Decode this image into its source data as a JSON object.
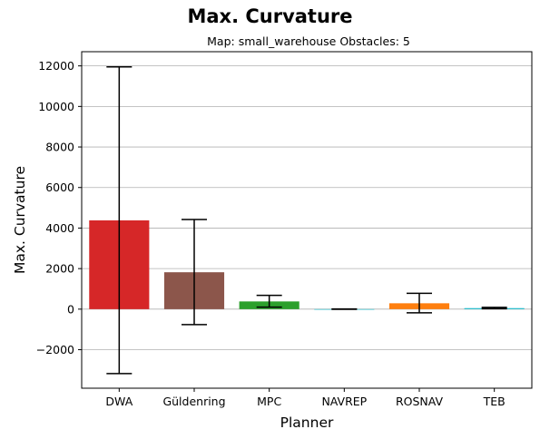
{
  "chart_data": {
    "type": "bar",
    "title": "Max. Curvature",
    "subtitle": "Map: small_warehouse Obstacles: 5",
    "xlabel": "Planner",
    "ylabel": "Max. Curvature",
    "categories": [
      "DWA",
      "Güldenring",
      "MPC",
      "NAVREP",
      "ROSNAV",
      "TEB"
    ],
    "values": [
      4380,
      1820,
      380,
      0,
      290,
      50
    ],
    "error_low": [
      -3180,
      -760,
      100,
      -10,
      -180,
      20
    ],
    "error_high": [
      11950,
      4420,
      680,
      10,
      780,
      90
    ],
    "colors": [
      "#d62728",
      "#8c564b",
      "#2ca02c",
      "#17becf",
      "#ff7f0e",
      "#17becf"
    ],
    "ylim": [
      -3900,
      12700
    ],
    "yticks": [
      -2000,
      0,
      2000,
      4000,
      6000,
      8000,
      10000,
      12000
    ],
    "ytick_labels": [
      "−2000",
      "0",
      "2000",
      "4000",
      "6000",
      "8000",
      "10000",
      "12000"
    ],
    "grid": "horizontal",
    "legend": "none"
  }
}
